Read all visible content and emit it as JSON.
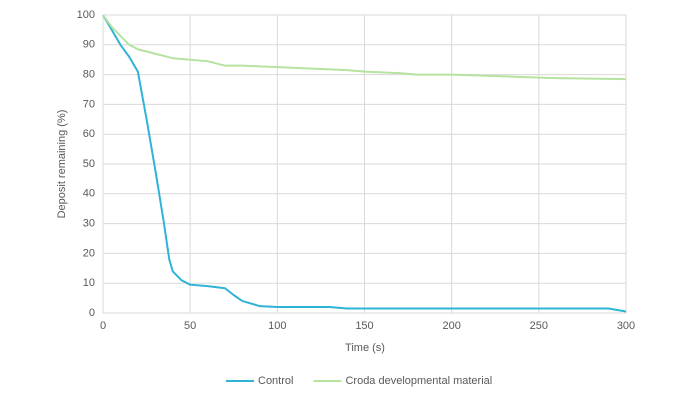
{
  "chart_data": {
    "type": "line",
    "x_label": "Time (s)",
    "y_label": "Deposit remaining (%)",
    "xlim": [
      0,
      300
    ],
    "xticks": [
      0,
      50,
      100,
      150,
      200,
      250,
      300
    ],
    "ylim": [
      0,
      100
    ],
    "yticks": [
      0,
      10,
      20,
      30,
      40,
      50,
      60,
      70,
      80,
      90,
      100
    ],
    "grid": true,
    "legend": "bottom",
    "series": [
      {
        "name": "Control",
        "color": "#2eb4d6",
        "x": [
          0,
          5,
          10,
          15,
          20,
          25,
          30,
          35,
          38,
          40,
          45,
          50,
          60,
          70,
          75,
          80,
          90,
          100,
          120,
          130,
          140,
          150,
          200,
          250,
          290,
          300
        ],
        "values": [
          100,
          95,
          90,
          86,
          81,
          65,
          48,
          30,
          18,
          14,
          11,
          9.5,
          9,
          8.3,
          6,
          4,
          2.3,
          2,
          2,
          2,
          1.5,
          1.5,
          1.5,
          1.5,
          1.5,
          0.5
        ]
      },
      {
        "name": "Croda developmental material",
        "color": "#b5e3a1",
        "x": [
          0,
          5,
          10,
          15,
          20,
          30,
          40,
          50,
          60,
          70,
          80,
          100,
          120,
          140,
          150,
          170,
          180,
          200,
          250,
          260,
          300
        ],
        "values": [
          100,
          96,
          93,
          90,
          88.5,
          87,
          85.5,
          85,
          84.5,
          83,
          83,
          82.5,
          82,
          81.5,
          81,
          80.5,
          80,
          80,
          79,
          78.8,
          78.5
        ]
      }
    ]
  }
}
